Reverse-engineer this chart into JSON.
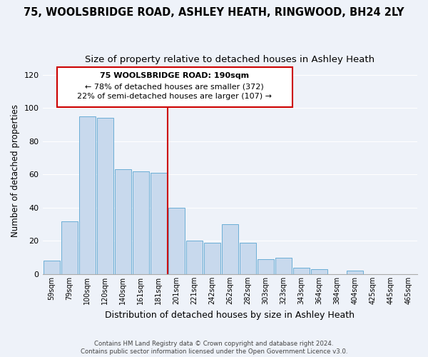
{
  "title": "75, WOOLSBRIDGE ROAD, ASHLEY HEATH, RINGWOOD, BH24 2LY",
  "subtitle": "Size of property relative to detached houses in Ashley Heath",
  "xlabel": "Distribution of detached houses by size in Ashley Heath",
  "ylabel": "Number of detached properties",
  "bins": [
    "59sqm",
    "79sqm",
    "100sqm",
    "120sqm",
    "140sqm",
    "161sqm",
    "181sqm",
    "201sqm",
    "221sqm",
    "242sqm",
    "262sqm",
    "282sqm",
    "303sqm",
    "323sqm",
    "343sqm",
    "364sqm",
    "384sqm",
    "404sqm",
    "425sqm",
    "445sqm",
    "465sqm"
  ],
  "values": [
    8,
    32,
    95,
    94,
    63,
    62,
    61,
    40,
    20,
    19,
    30,
    19,
    9,
    10,
    4,
    3,
    0,
    2,
    0,
    0,
    0
  ],
  "bar_color": "#c8d9ed",
  "bar_edge_color": "#6baed6",
  "ref_line_x": 6.5,
  "annotation_text_line1": "75 WOOLSBRIDGE ROAD: 190sqm",
  "annotation_text_line2": "← 78% of detached houses are smaller (372)",
  "annotation_text_line3": "22% of semi-detached houses are larger (107) →",
  "annotation_box_edge": "#cc0000",
  "ref_line_color": "#cc0000",
  "footer1": "Contains HM Land Registry data © Crown copyright and database right 2024.",
  "footer2": "Contains public sector information licensed under the Open Government Licence v3.0.",
  "ylim": [
    0,
    125
  ],
  "yticks": [
    0,
    20,
    40,
    60,
    80,
    100,
    120
  ],
  "bg_color": "#eef2f9",
  "title_fontsize": 10.5,
  "subtitle_fontsize": 9.5,
  "grid_color": "#ffffff"
}
